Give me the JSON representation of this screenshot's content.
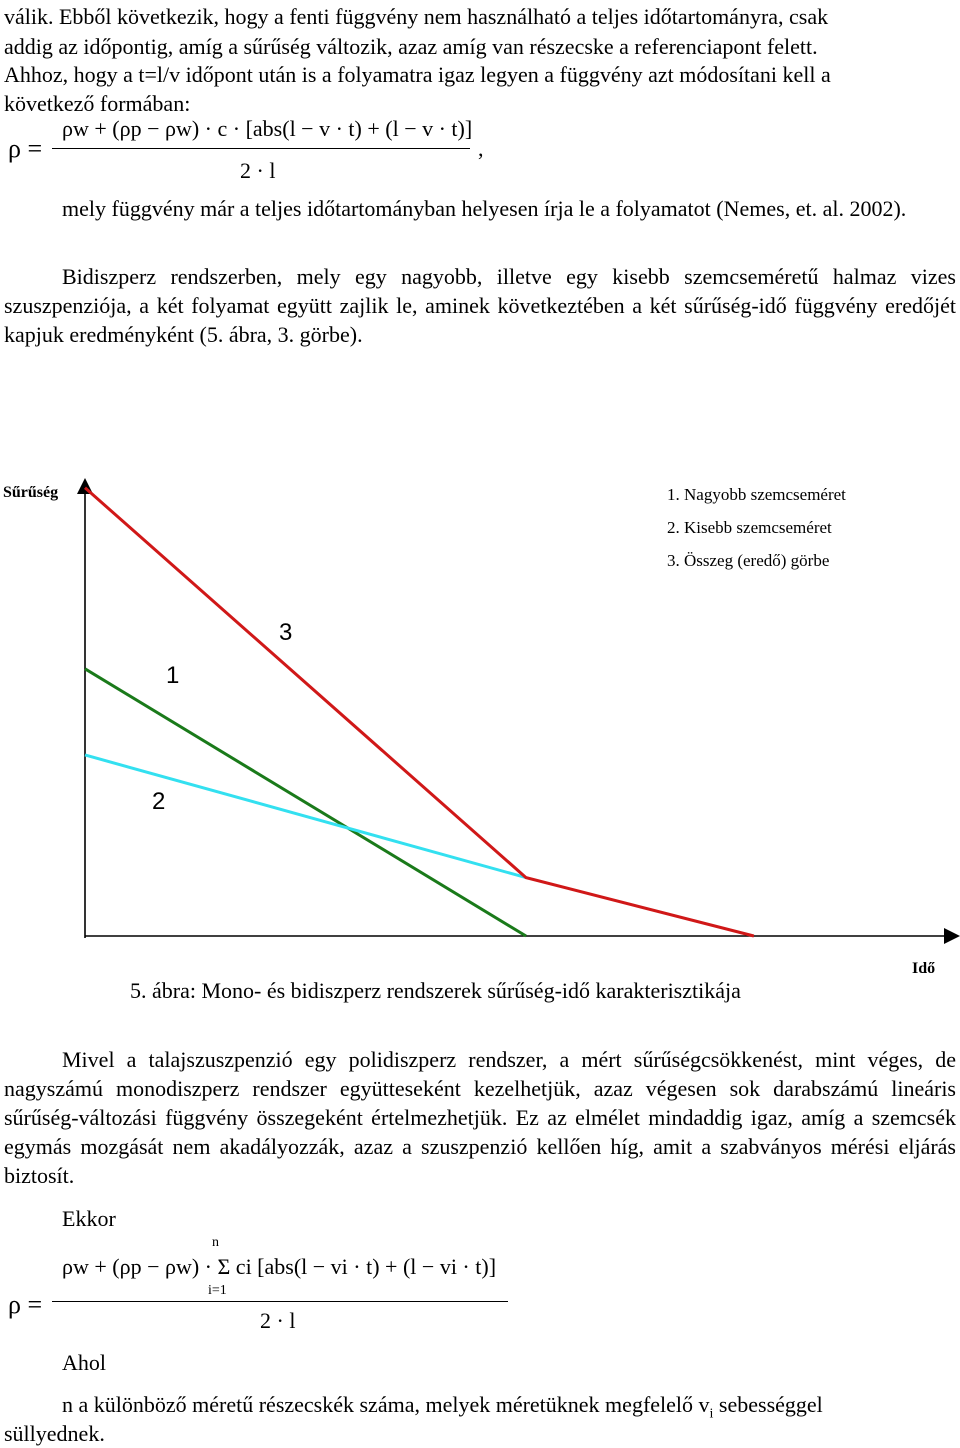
{
  "text": {
    "p1_line1": "válik. Ebből következik, hogy a fenti függvény nem használható a teljes időtartományra, csak",
    "p1_line2": "addig az időpontig, amíg a sűrűség változik, azaz amíg van részecske a referenciapont felett.",
    "p2_a": "Ahhoz, hogy a t=l/v időpont után is a folyamatra igaz legyen a függvény azt módosítani kell a",
    "p2_b": "következő formában:",
    "p3": "mely függvény már a teljes időtartományban helyesen írja le a folyamatot (Nemes, et. al. 2002).",
    "p4": "Bidiszperz rendszerben, mely egy nagyobb, illetve egy kisebb szemcseméretű halmaz vizes szuszpenziója, a két folyamat együtt zajlik le, aminek következtében a két sűrűség-idő függvény eredőjét kapjuk eredményként (5. ábra, 3. görbe).",
    "p5": "Mivel a talajszuszpenzió egy polidiszperz rendszer, a mért sűrűségcsökkenést, mint véges, de nagyszámú monodiszperz rendszer együtteseként kezelhetjük, azaz végesen sok darabszámú lineáris sűrűség-változási függvény összegeként értelmezhetjük. Ez az elmélet mindaddig igaz, amíg a szemcsék egymás mozgását nem akadályozzák, azaz a szuszpenzió kellően híg, amit a szabványos mérési eljárás biztosít.",
    "ekkor": "Ekkor",
    "ahol": "Ahol",
    "last_a": "n a különböző méretű részecskék száma, melyek méretüknek megfelelő v",
    "last_sub": "i",
    "last_b": " sebességgel",
    "last_c": "süllyednek."
  },
  "formula1": {
    "lhs": "ρ =",
    "numerator": "ρw + (ρp − ρw) · c · [abs(l − v · t) + (l − v · t)]",
    "denominator": "2 · l",
    "trail": ","
  },
  "formula2": {
    "lhs": "ρ =",
    "sum_top": "n",
    "sum_bottom": "i=1",
    "numerator": "ρw + (ρp − ρw) · Σ ci [abs(l − vi · t) + (l − vi · t)]",
    "denominator": "2 · l"
  },
  "figure": {
    "caption": "5. ábra: Mono- és bidiszperz rendszerek sűrűség-idő karakterisztikája"
  },
  "chart_data": {
    "type": "line",
    "ylabel": "Sűrűség",
    "xlabel": "Idő",
    "legend": [
      "1. Nagyobb szemcseméret",
      "2. Kisebb szemcseméret",
      "3. Összeg (eredő) görbe"
    ],
    "legend_position": "top-right",
    "series": [
      {
        "name": "1",
        "color": "#1a7a1a",
        "x": [
          0,
          1.8
        ],
        "y": [
          1.83,
          0
        ]
      },
      {
        "name": "2",
        "color": "#33e0f0",
        "x": [
          0,
          1.8
        ],
        "y": [
          1.24,
          0.4
        ]
      },
      {
        "name": "3",
        "color": "#d01818",
        "x": [
          0,
          1.8,
          2.73
        ],
        "y": [
          3.07,
          0.4,
          0
        ]
      }
    ],
    "curve_labels": [
      "1",
      "2",
      "3"
    ]
  },
  "colors": {
    "series1": "#1a7a1a",
    "series2": "#33e0f0",
    "series3": "#d01818"
  }
}
